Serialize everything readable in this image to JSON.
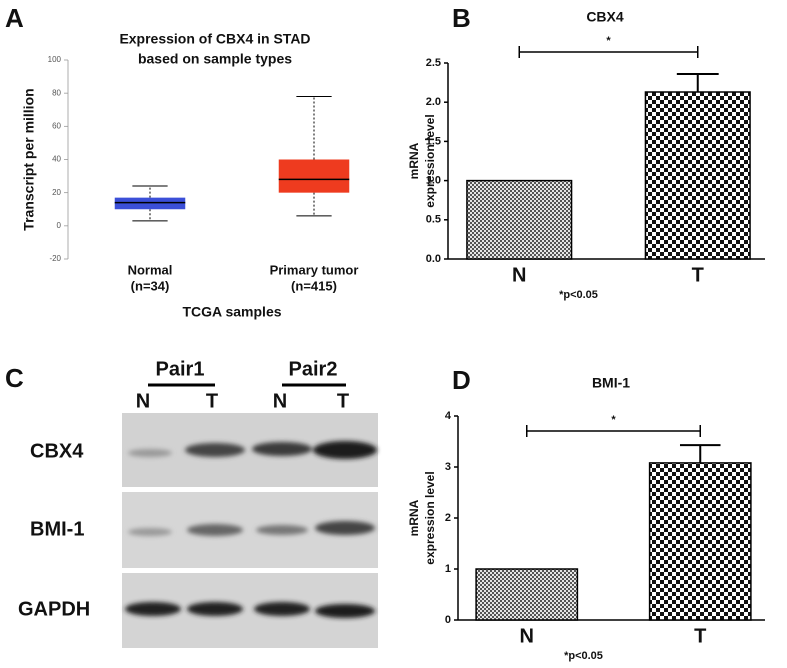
{
  "chart_data": [
    {
      "type": "box",
      "panel_label": "A",
      "title": [
        "Expression of CBX4 in STAD",
        "based on sample types"
      ],
      "xlabel": "TCGA samples",
      "ylabel": "Transcript per million",
      "categories": [
        "Normal",
        "Primary tumor"
      ],
      "sample_counts": [
        "(n=34)",
        "(n=415)"
      ],
      "whisker_low": [
        3,
        6
      ],
      "q1": [
        10,
        20
      ],
      "median": [
        14,
        28
      ],
      "q3": [
        17,
        40
      ],
      "whisker_high": [
        24,
        78
      ],
      "colors": [
        "#3b4fd8",
        "#ee3b1f"
      ],
      "ylim": [
        -20,
        100
      ],
      "yticks": [
        -20,
        0,
        20,
        40,
        60,
        80,
        100
      ]
    },
    {
      "type": "bar",
      "panel_label": "B",
      "title": "CBX4",
      "ylabel": [
        "mRNA",
        "expression level"
      ],
      "categories": [
        "N",
        "T"
      ],
      "values": [
        1.0,
        2.13
      ],
      "errors": [
        null,
        0.23
      ],
      "significance": "*",
      "footnote": "*p<0.05",
      "ylim": [
        0,
        2.5
      ],
      "yticks": [
        {
          "value": 0,
          "label": "0.0"
        },
        0.5,
        {
          "value": 1,
          "label": "1.0"
        },
        1.5,
        {
          "value": 2,
          "label": "2.0"
        },
        2.5
      ]
    },
    {
      "type": "bar",
      "panel_label": "D",
      "title": "BMI-1",
      "ylabel": [
        "mRNA",
        "expression level"
      ],
      "categories": [
        "N",
        "T"
      ],
      "values": [
        1.0,
        3.08
      ],
      "errors": [
        null,
        0.35
      ],
      "significance": "*",
      "footnote": "*p<0.05",
      "ylim": [
        0,
        4
      ],
      "yticks": [
        0,
        1,
        2,
        3,
        4
      ]
    }
  ],
  "blot": {
    "panel_label": "C",
    "pairs": [
      "Pair1",
      "Pair2"
    ],
    "lanes": [
      "N",
      "T",
      "N",
      "T"
    ],
    "rows": [
      "CBX4",
      "BMI-1",
      "GAPDH"
    ]
  }
}
